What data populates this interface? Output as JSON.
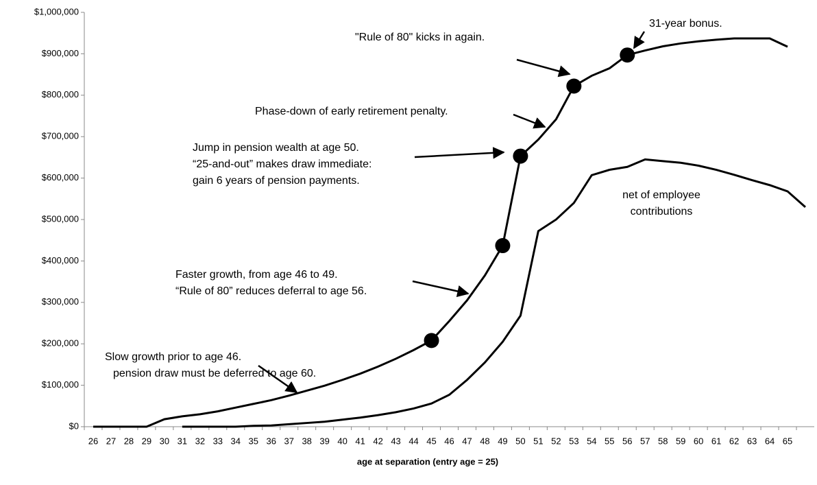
{
  "chart_data": {
    "type": "line",
    "x_label": "age at separation (entry age = 25)",
    "categories": [
      26,
      27,
      28,
      29,
      30,
      31,
      32,
      33,
      34,
      35,
      36,
      37,
      38,
      39,
      40,
      41,
      42,
      43,
      44,
      45,
      46,
      47,
      48,
      49,
      50,
      51,
      52,
      53,
      54,
      55,
      56,
      57,
      58,
      59,
      60,
      61,
      62,
      63,
      64,
      65,
      null
    ],
    "series": [
      {
        "color": "#000000",
        "values": [
          0,
          0,
          0,
          0,
          18000,
          25000,
          30000,
          37000,
          46000,
          55000,
          64000,
          75000,
          87000,
          99000,
          113000,
          128000,
          145000,
          164000,
          185000,
          208000,
          255000,
          305000,
          365000,
          437000,
          653000,
          693000,
          742000,
          822000,
          847000,
          865000,
          897000,
          908000,
          918000,
          925000,
          930000,
          934000,
          937000,
          937000,
          937000,
          917000,
          null
        ]
      },
      {
        "color": "#000000",
        "values": [
          null,
          null,
          null,
          null,
          null,
          0,
          0,
          0,
          0,
          2000,
          3000,
          6000,
          9000,
          12000,
          17000,
          22000,
          28000,
          35000,
          44000,
          56000,
          77000,
          113000,
          155000,
          205000,
          268000,
          472000,
          500000,
          540000,
          607000,
          620000,
          627000,
          645000,
          641000,
          637000,
          630000,
          620000,
          608000,
          595000,
          583000,
          568000,
          530000
        ]
      }
    ],
    "markers": {
      "series": 0,
      "indices": [
        19,
        23,
        24,
        27,
        30
      ]
    },
    "ylim": [
      0,
      1000000
    ],
    "yticks": [
      {
        "value": 0,
        "label": "$0"
      },
      {
        "value": 100000,
        "label": "$100,000"
      },
      {
        "value": 200000,
        "label": "$200,000"
      },
      {
        "value": 300000,
        "label": "$300,000"
      },
      {
        "value": 400000,
        "label": "$400,000"
      },
      {
        "value": 500000,
        "label": "$500,000"
      },
      {
        "value": 600000,
        "label": "$600,000"
      },
      {
        "value": 700000,
        "label": "$700,000"
      },
      {
        "value": 800000,
        "label": "$800,000"
      },
      {
        "value": 900000,
        "label": "$900,000"
      },
      {
        "value": 1000000,
        "label": "$1,000,000"
      }
    ],
    "grid": false,
    "annotations": [
      {
        "lines": [
          "Slow growth prior to age 46.",
          "pension draw must be deferred to age 60."
        ]
      },
      {
        "lines": [
          "Faster growth, from age 46 to 49.",
          "“Rule of 80” reduces deferral to age 56."
        ]
      },
      {
        "lines": [
          "Jump in pension wealth at age 50.",
          "“25-and-out” makes draw immediate:",
          "gain 6 years of pension payments."
        ]
      },
      {
        "lines": [
          "Phase-down of early retirement penalty."
        ]
      },
      {
        "lines": [
          "\"Rule of 80\" kicks in again."
        ]
      },
      {
        "lines": [
          "31-year bonus."
        ]
      },
      {
        "lines": [
          "net of employee",
          "contributions"
        ]
      }
    ]
  }
}
